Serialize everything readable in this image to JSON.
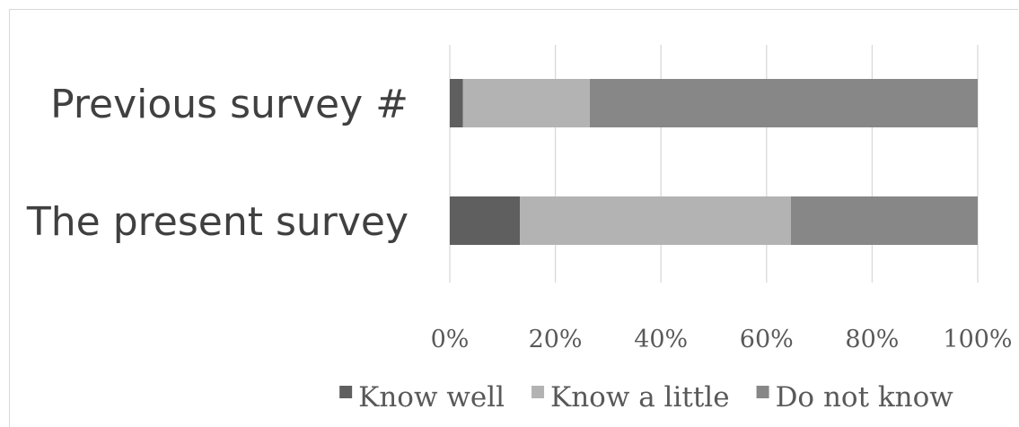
{
  "chart_data": {
    "type": "bar",
    "orientation": "horizontal",
    "stacking": "percent",
    "categories": [
      "Previous survey #",
      "The present survey"
    ],
    "series": [
      {
        "name": "Know well",
        "color": "#5f5f5f",
        "values": [
          2.5,
          13.3
        ]
      },
      {
        "name": "Know a little",
        "color": "#b3b3b3",
        "values": [
          24.0,
          51.3
        ]
      },
      {
        "name": "Do not know",
        "color": "#878787",
        "values": [
          73.5,
          35.4
        ]
      }
    ],
    "xlim": [
      0,
      100
    ],
    "xticks": [
      {
        "value": 0,
        "label": "0%"
      },
      {
        "value": 20,
        "label": "20%"
      },
      {
        "value": 40,
        "label": "40%"
      },
      {
        "value": 60,
        "label": "60%"
      },
      {
        "value": 80,
        "label": "80%"
      },
      {
        "value": 100,
        "label": "100%"
      }
    ],
    "grid": "vertical",
    "legend_position": "bottom",
    "title": "",
    "xlabel": "",
    "ylabel": ""
  }
}
